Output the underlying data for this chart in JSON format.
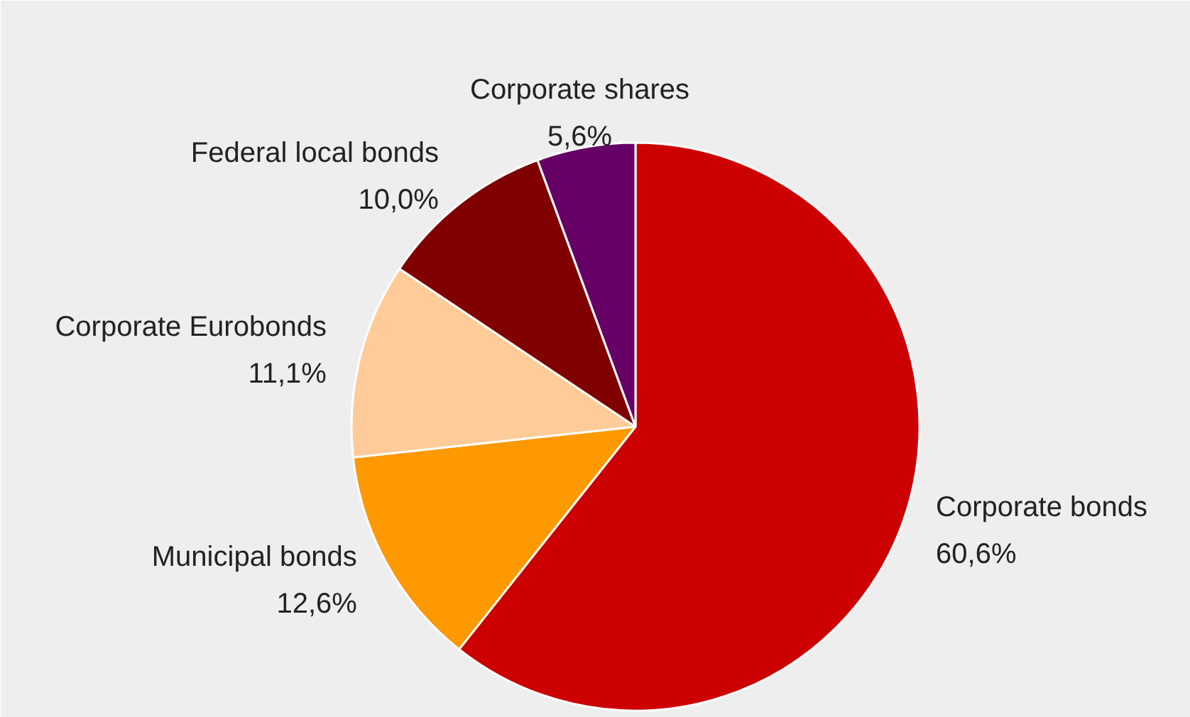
{
  "chart_data": {
    "type": "pie",
    "categories": [
      "Corporate bonds",
      "Municipal bonds",
      "Corporate Eurobonds",
      "Federal local bonds",
      "Corporate shares"
    ],
    "values": [
      60.6,
      12.6,
      11.1,
      10.0,
      5.6
    ],
    "value_labels": [
      "60,6%",
      "12,6%",
      "11,1%",
      "10,0%",
      "5,6%"
    ],
    "colors": [
      "#cc0000",
      "#ff9900",
      "#ffcc99",
      "#800000",
      "#660066"
    ]
  }
}
